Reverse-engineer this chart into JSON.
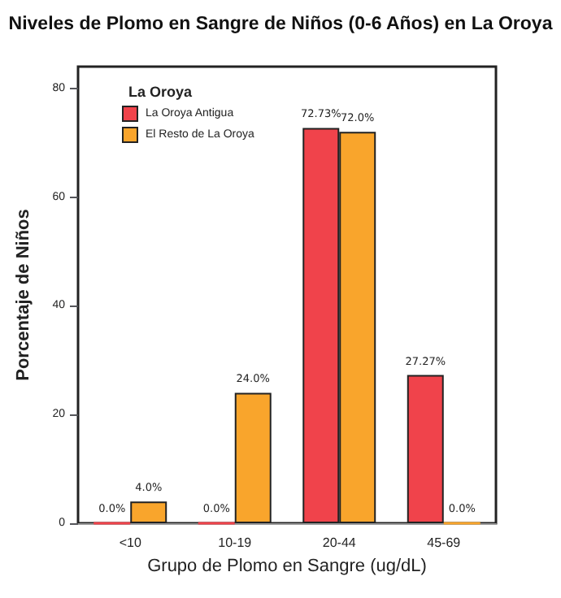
{
  "chart_data": {
    "type": "bar",
    "title": "Niveles de Plomo en Sangre de Niños (0-6 Años) en La Oroya",
    "xlabel": "Grupo de Plomo en Sangre (ug/dL)",
    "ylabel": "Porcentaje de Niños",
    "legend_title": "La Oroya",
    "categories": [
      "<10",
      "10-19",
      "20-44",
      "45-69"
    ],
    "series": [
      {
        "name": "La Oroya Antigua",
        "color": "#f0434b",
        "values": [
          0,
          0,
          72.73,
          27.27
        ],
        "value_labels": [
          "0.0%",
          "0.0%",
          "72.73%",
          "27.27%"
        ]
      },
      {
        "name": "El Resto de La Oroya",
        "color": "#f9a52c",
        "values": [
          4,
          24,
          72,
          0
        ],
        "value_labels": [
          "4.0%",
          "24.0%",
          "72.0%",
          "0.0%"
        ]
      }
    ],
    "ylim": [
      0,
      84
    ],
    "yticks": [
      0,
      20,
      40,
      60,
      80
    ],
    "grid": false,
    "legend": "top left"
  }
}
